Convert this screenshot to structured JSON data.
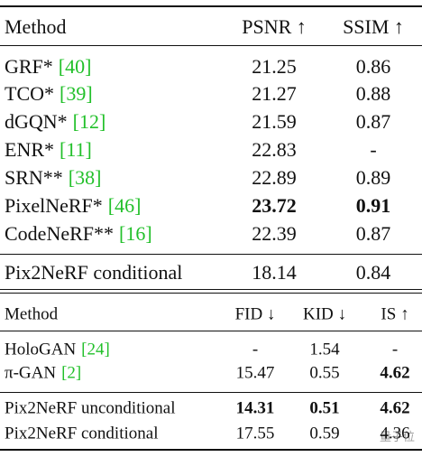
{
  "table1": {
    "header": [
      "Method",
      "PSNR ↑",
      "SSIM ↑"
    ],
    "groups": [
      [
        {
          "method": "GRF*",
          "ref": "[40]",
          "values": [
            21.25,
            0.86
          ]
        },
        {
          "method": "TCO*",
          "ref": "[39]",
          "values": [
            21.27,
            0.88
          ]
        },
        {
          "method": "dGQN*",
          "ref": "[12]",
          "values": [
            21.59,
            0.87
          ]
        },
        {
          "method": "ENR*",
          "ref": "[11]",
          "values": [
            22.83,
            "-"
          ]
        },
        {
          "method": "SRN**",
          "ref": "[38]",
          "values": [
            22.89,
            0.89
          ]
        },
        {
          "method": "PixelNeRF*",
          "ref": "[46]",
          "values": [
            23.72,
            0.91
          ],
          "bold": [
            0,
            1
          ]
        },
        {
          "method": "CodeNeRF**",
          "ref": "[16]",
          "values": [
            22.39,
            0.87
          ]
        }
      ],
      [
        {
          "method": "Pix2NeRF conditional",
          "values": [
            18.14,
            0.84
          ]
        }
      ]
    ]
  },
  "table2": {
    "header": [
      "Method",
      "FID ↓",
      "KID ↓",
      "IS ↑"
    ],
    "groups": [
      [
        {
          "method": "HoloGAN",
          "ref": "[24]",
          "values": [
            "-",
            1.54,
            "-"
          ]
        },
        {
          "method": "π-GAN",
          "ref": "[2]",
          "values": [
            15.47,
            0.55,
            4.62
          ],
          "bold": [
            2
          ]
        }
      ],
      [
        {
          "method": "Pix2NeRF unconditional",
          "values": [
            14.31,
            0.51,
            4.62
          ],
          "bold": [
            0,
            1,
            2
          ]
        },
        {
          "method": "Pix2NeRF conditional",
          "values": [
            17.55,
            0.59,
            4.36
          ]
        }
      ]
    ]
  },
  "watermark": "量子位"
}
